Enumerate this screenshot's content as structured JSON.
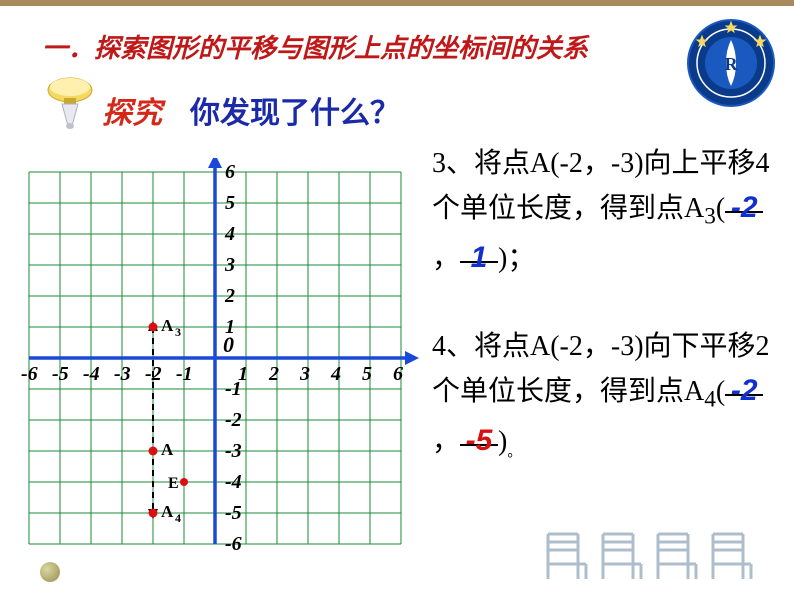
{
  "heading": "一．探索图形的平移与图形上点的坐标间的关系",
  "explore_label": "探究",
  "question": "你发现了什么？",
  "grid": {
    "xlim": [
      -6,
      6
    ],
    "ylim": [
      -6,
      6
    ],
    "cell": 31,
    "axis_color": "#1a48d8",
    "grid_color": "#1a8a3a",
    "origin_label": "0",
    "x_ticks": [
      "-6",
      "-5",
      "-4",
      "-3",
      "-2",
      "-1",
      "1",
      "2",
      "3",
      "4",
      "5",
      "6"
    ],
    "y_ticks_pos": [
      "1",
      "2",
      "3",
      "4",
      "5",
      "6"
    ],
    "y_ticks_neg": [
      "-1",
      "-2",
      "-3",
      "-4",
      "-5",
      "-6"
    ],
    "points": {
      "A": {
        "x": -2,
        "y": -3,
        "label": "A"
      },
      "A3": {
        "x": -2,
        "y": 1,
        "label": "A₃"
      },
      "A4": {
        "x": -2,
        "y": -5,
        "label": "A₄"
      },
      "E": {
        "x": -1,
        "y": -4,
        "label": "E"
      }
    },
    "point_color": "#d81010",
    "dash_color": "#000000"
  },
  "problems": {
    "p3": {
      "prefix": "3、将点A(-2，-3)向上平移4个单位长度，得到点A",
      "sub": "3",
      "ans1": "-2",
      "ans2": "1"
    },
    "p4": {
      "prefix": "4、将点A(-2，-3)向下平移2个单位长度，得到点A",
      "sub": "4",
      "ans1": "-2",
      "ans2": "-5"
    }
  },
  "colors": {
    "heading": "#c01818",
    "question": "#1a2aa8",
    "ans_blue": "#1030d0",
    "ans_red": "#d81010"
  }
}
